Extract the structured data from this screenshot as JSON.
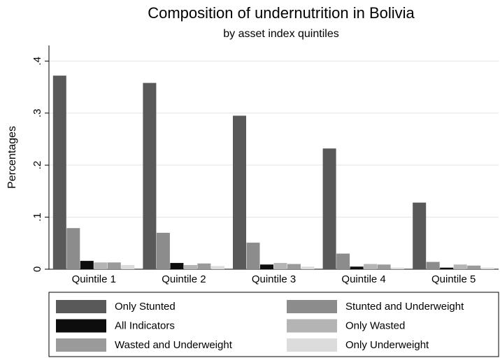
{
  "chart_data": {
    "type": "bar",
    "title": "Composition of undernutrition in Bolivia",
    "subtitle": "by asset index quintiles",
    "y_label": "Percentages",
    "categories": [
      "Quintile 1",
      "Quintile 2",
      "Quintile 3",
      "Quintile 4",
      "Quintile 5"
    ],
    "series": [
      {
        "name": "Only Stunted",
        "color": "#595959",
        "values": [
          0.372,
          0.358,
          0.295,
          0.232,
          0.128
        ]
      },
      {
        "name": "Stunted and Underweight",
        "color": "#8c8c8c",
        "values": [
          0.079,
          0.07,
          0.051,
          0.03,
          0.014
        ]
      },
      {
        "name": "All Indicators",
        "color": "#0d0d0d",
        "values": [
          0.016,
          0.012,
          0.009,
          0.005,
          0.003
        ]
      },
      {
        "name": "Only Wasted",
        "color": "#b4b4b4",
        "values": [
          0.013,
          0.008,
          0.012,
          0.01,
          0.009
        ]
      },
      {
        "name": "Wasted and Underweight",
        "color": "#9a9a9a",
        "values": [
          0.013,
          0.011,
          0.01,
          0.009,
          0.007
        ]
      },
      {
        "name": "Only Underweight",
        "color": "#dcdcdc",
        "values": [
          0.008,
          0.006,
          0.005,
          0.003,
          0.003
        ]
      }
    ],
    "ylim": [
      0,
      0.43
    ],
    "yticks": [
      0,
      {
        "value": 0.1,
        "label": ".1"
      },
      {
        "value": 0.2,
        "label": ".2"
      },
      {
        "value": 0.3,
        "label": ".3"
      },
      {
        "value": 0.4,
        "label": ".4"
      }
    ],
    "grid": true
  }
}
